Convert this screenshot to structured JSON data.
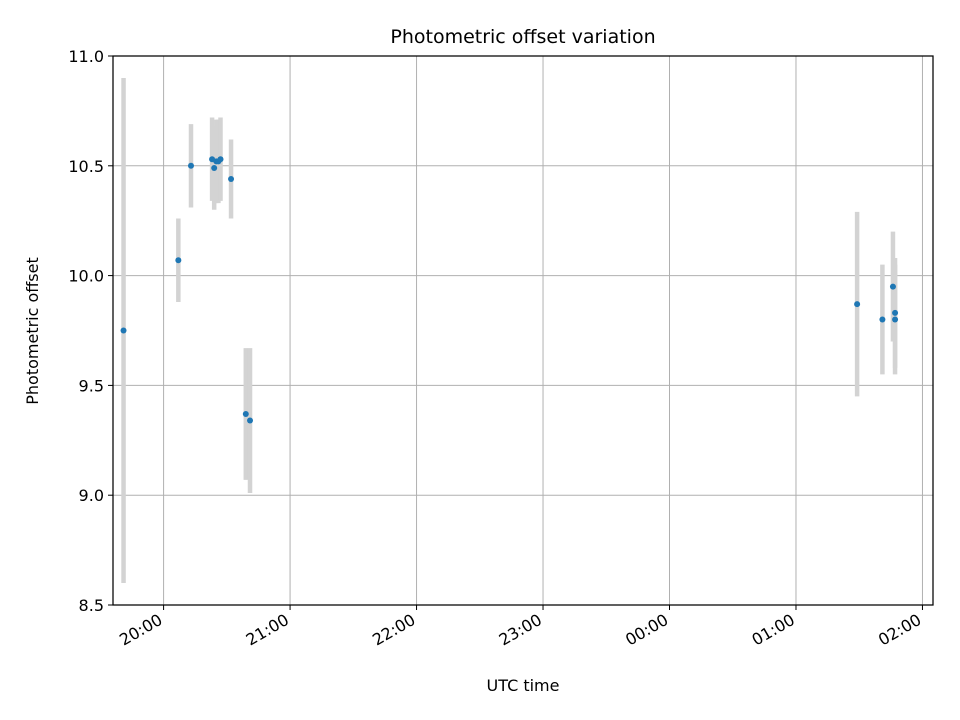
{
  "chart_data": {
    "type": "scatter",
    "title": "Photometric offset variation",
    "xlabel": "UTC time",
    "ylabel": "Photometric offset",
    "ylim": [
      8.5,
      11.0
    ],
    "xlim": [
      "19:36",
      "02:05"
    ],
    "y_ticks": [
      "8.5",
      "9.0",
      "9.5",
      "10.0",
      "10.5",
      "11.0"
    ],
    "x_ticks": [
      "20:00",
      "21:00",
      "22:00",
      "23:00",
      "00:00",
      "01:00",
      "02:00"
    ],
    "grid": true,
    "colors": {
      "point": "#1f77b4",
      "errorbar": "#d3d3d3",
      "grid": "#b0b0b0"
    },
    "points": [
      {
        "time": "19:41",
        "y": 9.75,
        "err": 1.15
      },
      {
        "time": "20:07",
        "y": 10.07,
        "err": 0.19
      },
      {
        "time": "20:13",
        "y": 10.5,
        "err": 0.19
      },
      {
        "time": "20:23",
        "y": 10.53,
        "err": 0.19
      },
      {
        "time": "20:24",
        "y": 10.49,
        "err": 0.19
      },
      {
        "time": "20:25",
        "y": 10.52,
        "err": 0.19
      },
      {
        "time": "20:26",
        "y": 10.52,
        "err": 0.19
      },
      {
        "time": "20:27",
        "y": 10.53,
        "err": 0.19
      },
      {
        "time": "20:32",
        "y": 10.44,
        "err": 0.18
      },
      {
        "time": "20:39",
        "y": 9.37,
        "err": 0.3
      },
      {
        "time": "20:41",
        "y": 9.34,
        "err": 0.33
      },
      {
        "time": "01:29",
        "y": 9.87,
        "err": 0.42
      },
      {
        "time": "01:41",
        "y": 9.8,
        "err": 0.25
      },
      {
        "time": "01:46",
        "y": 9.95,
        "err": 0.25
      },
      {
        "time": "01:47",
        "y": 9.83,
        "err": 0.25
      },
      {
        "time": "01:47",
        "y": 9.8,
        "err": 0.25
      }
    ]
  }
}
